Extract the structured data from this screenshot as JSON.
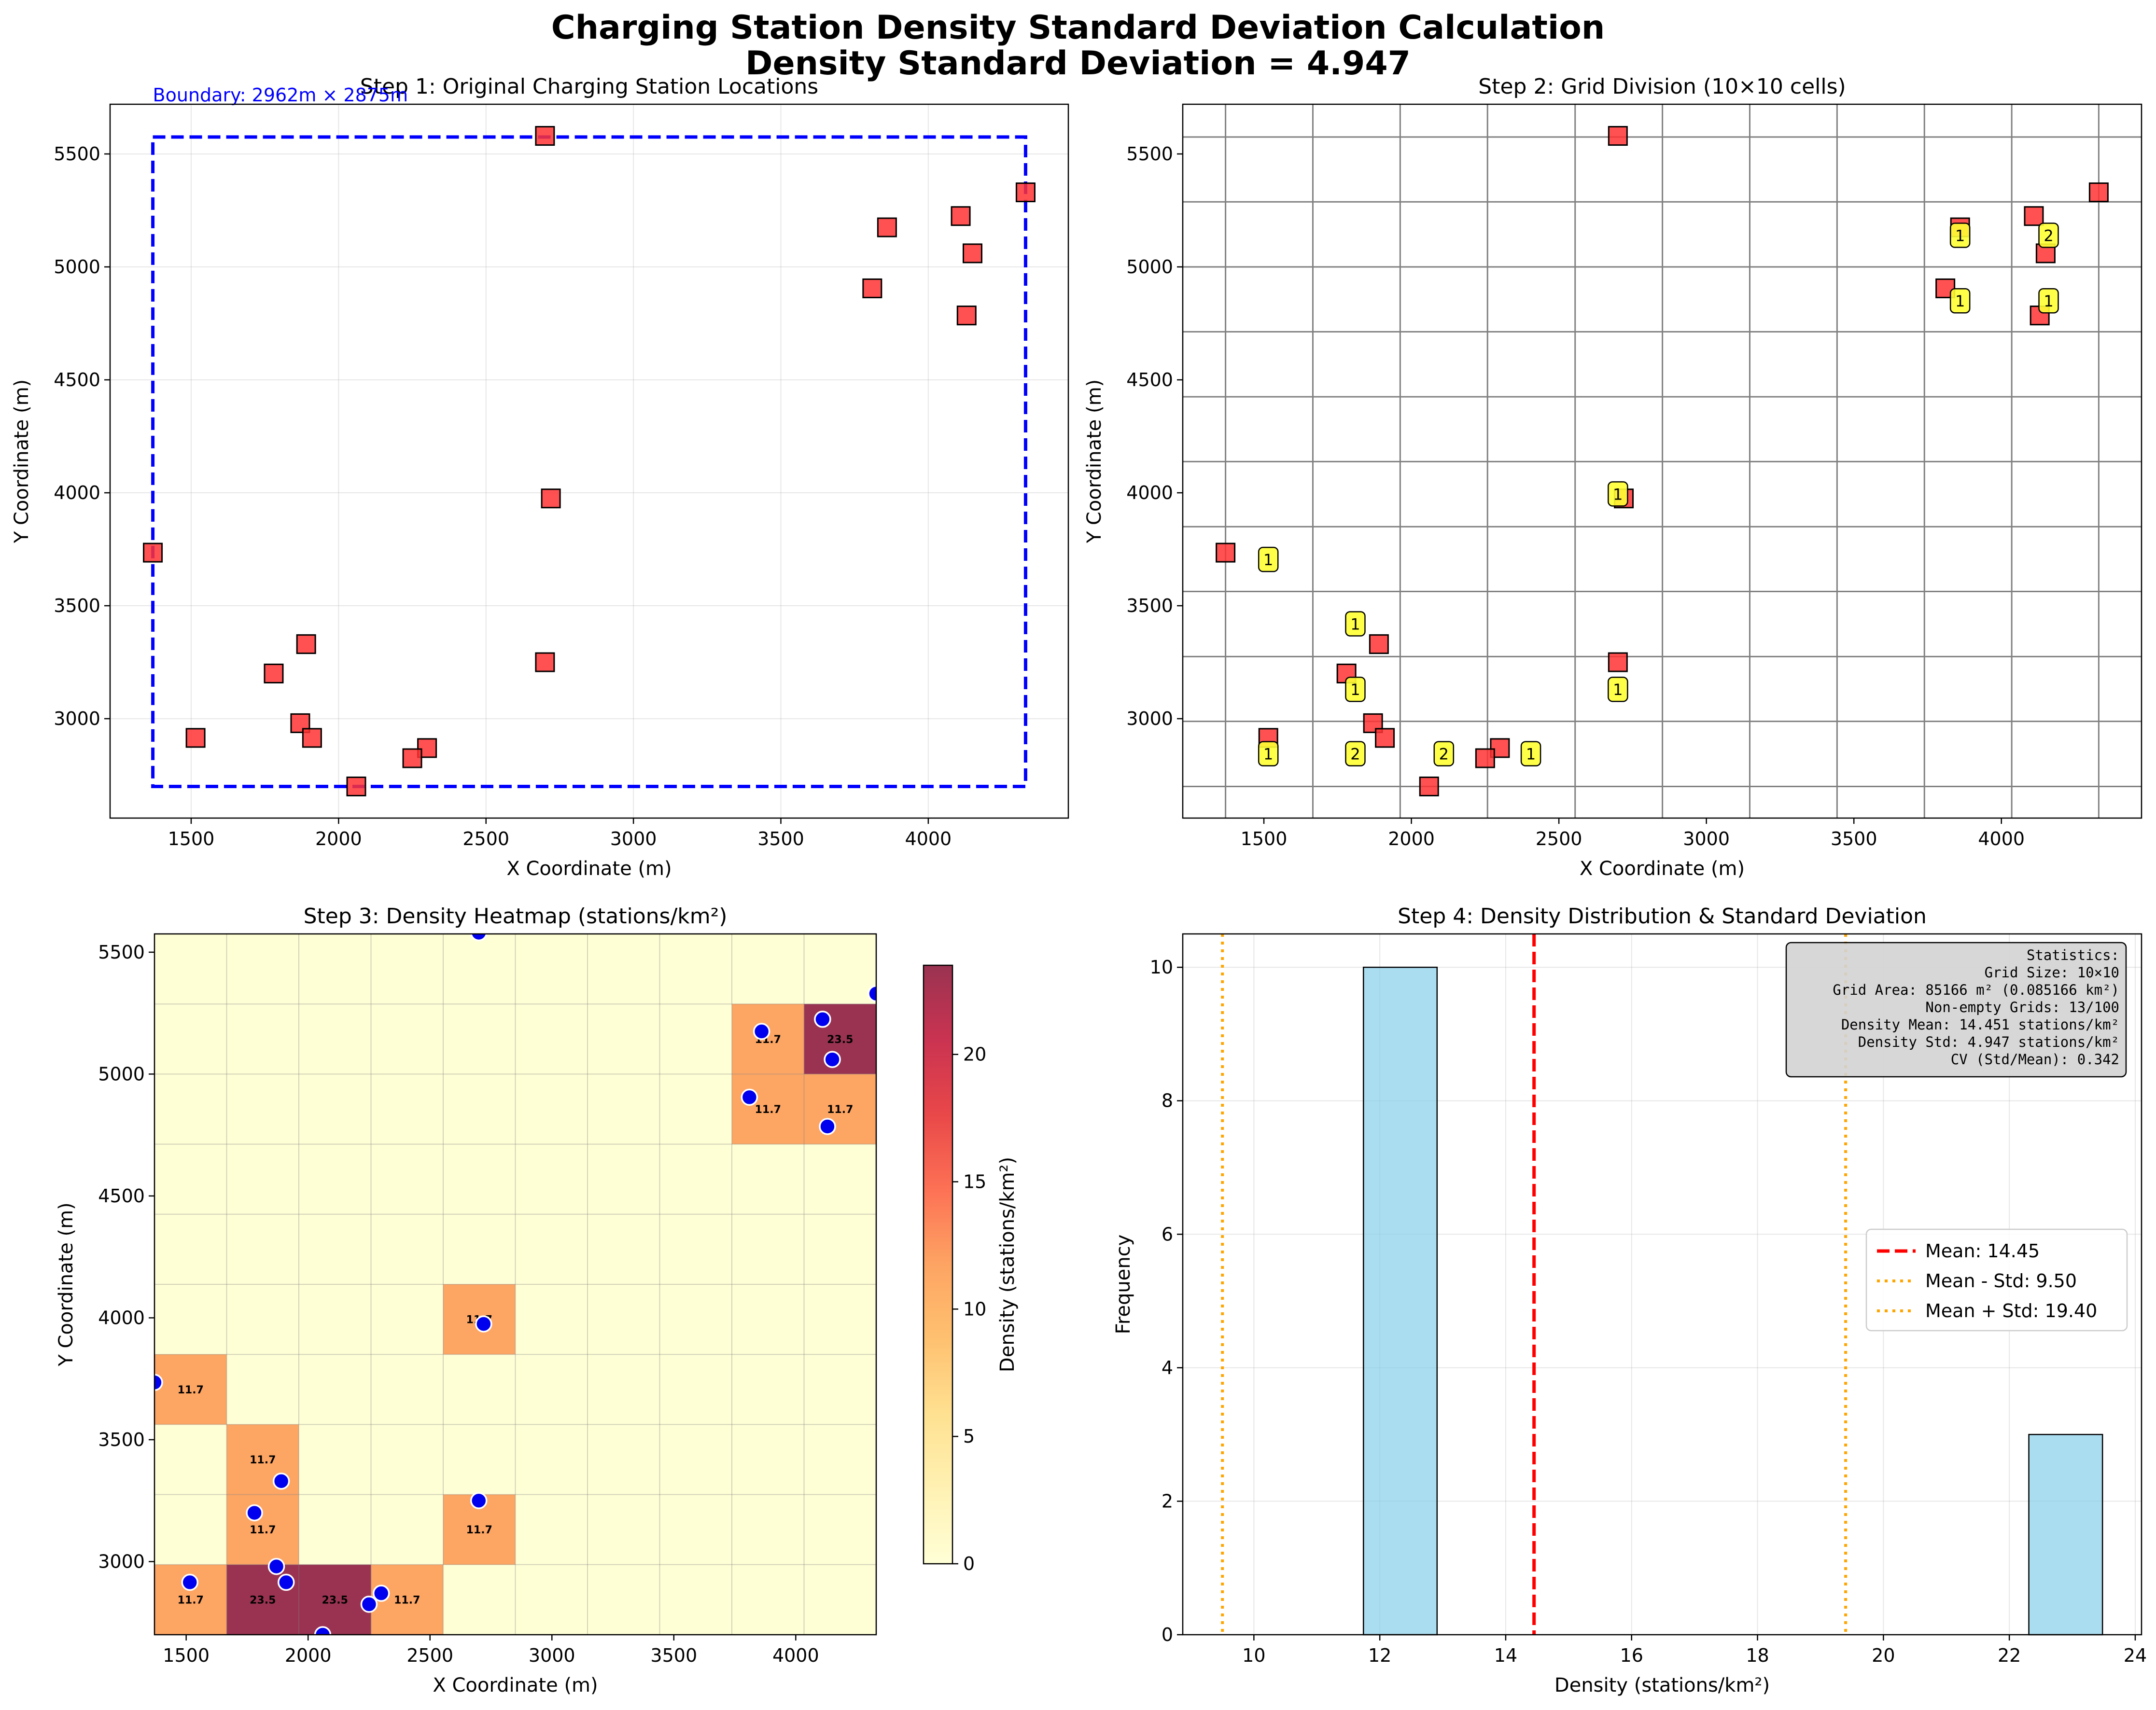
{
  "figure": {
    "title_line1": "Charging Station Density Standard Deviation Calculation",
    "title_line2": "Density Standard Deviation = 4.947"
  },
  "stations": [
    [
      2700,
      5580
    ],
    [
      4330,
      5330
    ],
    [
      4110,
      5225
    ],
    [
      3860,
      5175
    ],
    [
      4150,
      5060
    ],
    [
      3810,
      4905
    ],
    [
      4130,
      4785
    ],
    [
      2720,
      3975
    ],
    [
      1370,
      3735
    ],
    [
      1890,
      3330
    ],
    [
      2700,
      3250
    ],
    [
      1780,
      3200
    ],
    [
      1870,
      2980
    ],
    [
      1515,
      2915
    ],
    [
      1910,
      2915
    ],
    [
      2300,
      2870
    ],
    [
      2250,
      2825
    ],
    [
      2060,
      2700
    ]
  ],
  "chart_data": [
    {
      "type": "scatter",
      "title": "Step 1: Original Charging Station Locations",
      "xlabel": "X Coordinate (m)",
      "ylabel": "Y Coordinate (m)",
      "xlim": [
        1225,
        4475
      ],
      "ylim": [
        2560,
        5720
      ],
      "xticks": [
        1500,
        2000,
        2500,
        3000,
        3500,
        4000
      ],
      "yticks": [
        3000,
        3500,
        4000,
        4500,
        5000,
        5500
      ],
      "grid": true,
      "boundary": {
        "x0": 1370,
        "x1": 4330,
        "y0": 2700,
        "y1": 5575,
        "color": "#0000ff"
      },
      "annotation": "Boundary: 2962m × 2875m",
      "marker_color": "#ff3333"
    },
    {
      "type": "scatter",
      "title": "Step 2: Grid Division (10×10 cells)",
      "xlabel": "X Coordinate (m)",
      "ylabel": "Y Coordinate (m)",
      "xlim": [
        1225,
        4475
      ],
      "ylim": [
        2560,
        5720
      ],
      "xticks": [
        1500,
        2000,
        2500,
        3000,
        3500,
        4000
      ],
      "yticks": [
        3000,
        3500,
        4000,
        4500,
        5000,
        5500
      ],
      "grid_x": [
        1370,
        1666,
        1962,
        2258,
        2555,
        2851,
        3147,
        3443,
        3739,
        4035,
        4330
      ],
      "grid_y": [
        2700,
        2988,
        3275,
        3563,
        3850,
        4138,
        4425,
        4713,
        5000,
        5288,
        5575
      ],
      "cell_counts": [
        {
          "x": 3860,
          "y": 5140,
          "count": "1"
        },
        {
          "x": 4160,
          "y": 5140,
          "count": "2"
        },
        {
          "x": 3860,
          "y": 4850,
          "count": "1"
        },
        {
          "x": 4160,
          "y": 4850,
          "count": "1"
        },
        {
          "x": 2700,
          "y": 3995,
          "count": "1"
        },
        {
          "x": 1515,
          "y": 3705,
          "count": "1"
        },
        {
          "x": 1810,
          "y": 3420,
          "count": "1"
        },
        {
          "x": 1810,
          "y": 3130,
          "count": "1"
        },
        {
          "x": 2700,
          "y": 3130,
          "count": "1"
        },
        {
          "x": 1515,
          "y": 2845,
          "count": "1"
        },
        {
          "x": 1810,
          "y": 2845,
          "count": "2"
        },
        {
          "x": 2110,
          "y": 2845,
          "count": "2"
        },
        {
          "x": 2405,
          "y": 2845,
          "count": "1"
        }
      ]
    },
    {
      "type": "heatmap",
      "title": "Step 3: Density Heatmap (stations/km²)",
      "xlabel": "X Coordinate (m)",
      "ylabel": "Y Coordinate (m)",
      "xlim": [
        1370,
        4330
      ],
      "ylim": [
        2700,
        5575
      ],
      "xticks": [
        1500,
        2000,
        2500,
        3000,
        3500,
        4000
      ],
      "yticks": [
        3000,
        3500,
        4000,
        4500,
        5000,
        5500
      ],
      "colorbar_label": "Density (stations/km²)",
      "colorbar_range": [
        0,
        23.5
      ],
      "colorbar_ticks": [
        0,
        5,
        10,
        15,
        20
      ],
      "cells": [
        {
          "col": 8,
          "row": 8,
          "value": 11.7,
          "label": "11.7"
        },
        {
          "col": 9,
          "row": 8,
          "value": 23.5,
          "label": "23.5"
        },
        {
          "col": 8,
          "row": 7,
          "value": 11.7,
          "label": "11.7"
        },
        {
          "col": 9,
          "row": 7,
          "value": 11.7,
          "label": "11.7"
        },
        {
          "col": 4,
          "row": 4,
          "value": 11.7,
          "label": "11.7"
        },
        {
          "col": 0,
          "row": 3,
          "value": 11.7,
          "label": "11.7"
        },
        {
          "col": 1,
          "row": 2,
          "value": 11.7,
          "label": "11.7"
        },
        {
          "col": 1,
          "row": 1,
          "value": 11.7,
          "label": "11.7"
        },
        {
          "col": 4,
          "row": 1,
          "value": 11.7,
          "label": "11.7"
        },
        {
          "col": 0,
          "row": 0,
          "value": 11.7,
          "label": "11.7"
        },
        {
          "col": 1,
          "row": 0,
          "value": 23.5,
          "label": "23.5"
        },
        {
          "col": 2,
          "row": 0,
          "value": 23.5,
          "label": "23.5"
        },
        {
          "col": 3,
          "row": 0,
          "value": 11.7,
          "label": "11.7"
        }
      ]
    },
    {
      "type": "bar",
      "title": "Step 4: Density Distribution & Standard Deviation",
      "xlabel": "Density (stations/km²)",
      "ylabel": "Frequency",
      "xlim": [
        8.87,
        24.1
      ],
      "ylim": [
        0,
        10.5
      ],
      "xticks": [
        10,
        12,
        14,
        16,
        18,
        20,
        22,
        24
      ],
      "yticks": [
        0,
        2,
        4,
        6,
        8,
        10
      ],
      "bins": [
        {
          "x0": 11.74,
          "x1": 12.91,
          "count": 10
        },
        {
          "x0": 22.31,
          "x1": 23.48,
          "count": 3
        }
      ],
      "lines": [
        {
          "value": 14.45,
          "label": "Mean: 14.45",
          "style": "dashed",
          "color": "#ff0000"
        },
        {
          "value": 9.5,
          "label": "Mean - Std: 9.50",
          "style": "dotted",
          "color": "#ffa500"
        },
        {
          "value": 19.4,
          "label": "Mean + Std: 19.40",
          "style": "dotted",
          "color": "#ffa500"
        }
      ],
      "stats_box": [
        "Statistics:",
        "Grid Size: 10×10",
        "Grid Area: 85166 m² (0.085166 km²)",
        "Non-empty Grids: 13/100",
        "Density Mean: 14.451 stations/km²",
        "Density Std: 4.947 stations/km²",
        "CV (Std/Mean): 0.342"
      ]
    }
  ]
}
